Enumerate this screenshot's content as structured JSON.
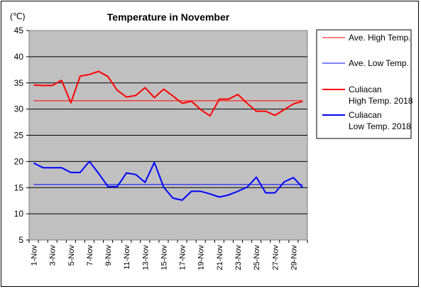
{
  "chart_data": {
    "type": "line",
    "title": "Temperature in November",
    "unit_label": "(℃)",
    "ylim": [
      5,
      45
    ],
    "y_ticks": [
      "5",
      "10",
      "15",
      "20",
      "25",
      "30",
      "35",
      "40",
      "45"
    ],
    "x": [
      "1-Nov",
      "2-Nov",
      "3-Nov",
      "4-Nov",
      "5-Nov",
      "6-Nov",
      "7-Nov",
      "8-Nov",
      "9-Nov",
      "10-Nov",
      "11-Nov",
      "12-Nov",
      "13-Nov",
      "14-Nov",
      "15-Nov",
      "16-Nov",
      "17-Nov",
      "18-Nov",
      "19-Nov",
      "20-Nov",
      "21-Nov",
      "22-Nov",
      "23-Nov",
      "24-Nov",
      "25-Nov",
      "26-Nov",
      "27-Nov",
      "28-Nov",
      "29-Nov",
      "30-Nov"
    ],
    "x_tick_labels": [
      "1-Nov",
      "3-Nov",
      "5-Nov",
      "7-Nov",
      "9-Nov",
      "11-Nov",
      "13-Nov",
      "15-Nov",
      "17-Nov",
      "19-Nov",
      "21-Nov",
      "23-Nov",
      "25-Nov",
      "27-Nov",
      "29-Nov"
    ],
    "grid": true,
    "legend_position": "right",
    "plot_background": "#c0c0c0",
    "series": [
      {
        "name": "Ave. High Temp.",
        "kind": "reference",
        "color": "#ff0000",
        "values": [
          31.6,
          31.6,
          31.6,
          31.6,
          31.6,
          31.6,
          31.6,
          31.6,
          31.6,
          31.6,
          31.6,
          31.6,
          31.6,
          31.6,
          31.6,
          31.6,
          31.6,
          31.6,
          31.6,
          31.6,
          31.6,
          31.6,
          31.6,
          31.6,
          31.6,
          31.6,
          31.6,
          31.6,
          31.6,
          31.6
        ]
      },
      {
        "name": "Ave. Low Temp.",
        "kind": "reference",
        "color": "#0000ff",
        "values": [
          15.6,
          15.6,
          15.6,
          15.6,
          15.6,
          15.6,
          15.6,
          15.6,
          15.6,
          15.6,
          15.6,
          15.6,
          15.6,
          15.6,
          15.6,
          15.6,
          15.6,
          15.6,
          15.6,
          15.6,
          15.6,
          15.6,
          15.6,
          15.6,
          15.6,
          15.6,
          15.6,
          15.6,
          15.6,
          15.6
        ]
      },
      {
        "name": "Culiacan High Temp. 2018",
        "legend_lines": [
          "Culiacan",
          "High Temp. 2018"
        ],
        "kind": "data",
        "color": "#ff0000",
        "values": [
          34.6,
          34.5,
          34.5,
          35.5,
          31.2,
          36.3,
          36.6,
          37.2,
          36.2,
          33.6,
          32.3,
          32.6,
          34.1,
          32.2,
          33.8,
          32.5,
          31.1,
          31.5,
          29.9,
          28.7,
          31.9,
          31.9,
          32.8,
          31.1,
          29.6,
          29.6,
          28.8,
          29.9,
          31.0,
          31.5
        ]
      },
      {
        "name": "Culiacan Low Temp. 2018",
        "legend_lines": [
          "Culiacan",
          "Low Temp. 2018"
        ],
        "kind": "data",
        "color": "#0000ff",
        "values": [
          19.7,
          18.8,
          18.8,
          18.8,
          17.9,
          17.9,
          20.0,
          17.7,
          15.2,
          15.2,
          17.8,
          17.5,
          16.0,
          19.8,
          15.1,
          13.0,
          12.6,
          14.3,
          14.3,
          13.8,
          13.2,
          13.6,
          14.3,
          15.1,
          17.0,
          14.0,
          14.0,
          16.1,
          16.9,
          15.0
        ]
      }
    ]
  }
}
